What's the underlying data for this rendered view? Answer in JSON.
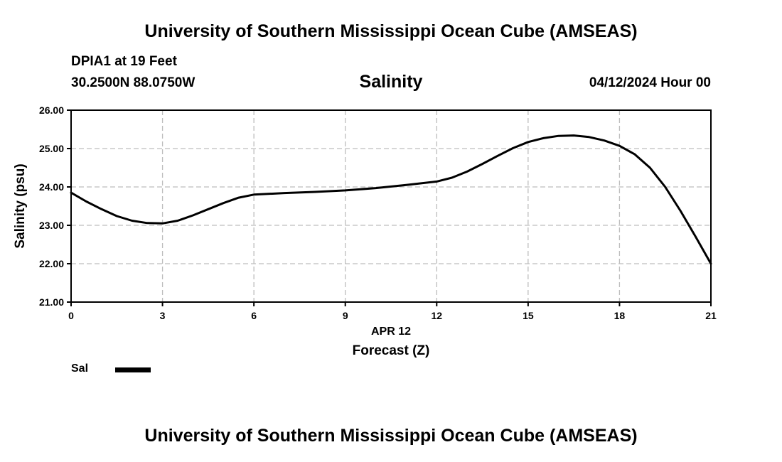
{
  "header": {
    "title_top": "University of Southern Mississippi Ocean Cube (AMSEAS)",
    "station": "DPIA1 at 19 Feet",
    "coords": "30.2500N  88.0750W",
    "datetime": "04/12/2024 Hour 00"
  },
  "footer": {
    "title_bottom": "University of Southern Mississippi Ocean Cube (AMSEAS)"
  },
  "legend": {
    "label": "Sal",
    "color": "#000000"
  },
  "chart_data": {
    "type": "line",
    "title": "Salinity",
    "xlabel": "Forecast (Z)",
    "x_sublabel": "APR 12",
    "ylabel": "Salinity (psu)",
    "xlim": [
      0,
      21
    ],
    "ylim": [
      21.0,
      26.0
    ],
    "xticks": [
      0,
      3,
      6,
      9,
      12,
      15,
      18,
      21
    ],
    "xtick_labels": [
      "0",
      "3",
      "6",
      "9",
      "12",
      "15",
      "18",
      "21"
    ],
    "yticks": [
      21.0,
      22.0,
      23.0,
      24.0,
      25.0,
      26.0
    ],
    "ytick_labels": [
      "21.00",
      "22.00",
      "23.00",
      "24.00",
      "25.00",
      "26.00"
    ],
    "grid": true,
    "series": [
      {
        "name": "Sal",
        "color": "#000000",
        "x": [
          0,
          0.5,
          1,
          1.5,
          2,
          2.5,
          3,
          3.5,
          4,
          4.5,
          5,
          5.5,
          6,
          7,
          8,
          9,
          10,
          11,
          12,
          12.5,
          13,
          13.5,
          14,
          14.5,
          15,
          15.5,
          16,
          16.5,
          17,
          17.5,
          18,
          18.5,
          19,
          19.5,
          20,
          20.5,
          21
        ],
        "values": [
          23.85,
          23.62,
          23.42,
          23.24,
          23.12,
          23.06,
          23.05,
          23.12,
          23.26,
          23.42,
          23.58,
          23.72,
          23.8,
          23.84,
          23.87,
          23.91,
          23.97,
          24.05,
          24.14,
          24.24,
          24.4,
          24.6,
          24.81,
          25.01,
          25.17,
          25.27,
          25.33,
          25.34,
          25.3,
          25.21,
          25.07,
          24.85,
          24.5,
          24.0,
          23.38,
          22.7,
          22.0
        ]
      }
    ]
  }
}
